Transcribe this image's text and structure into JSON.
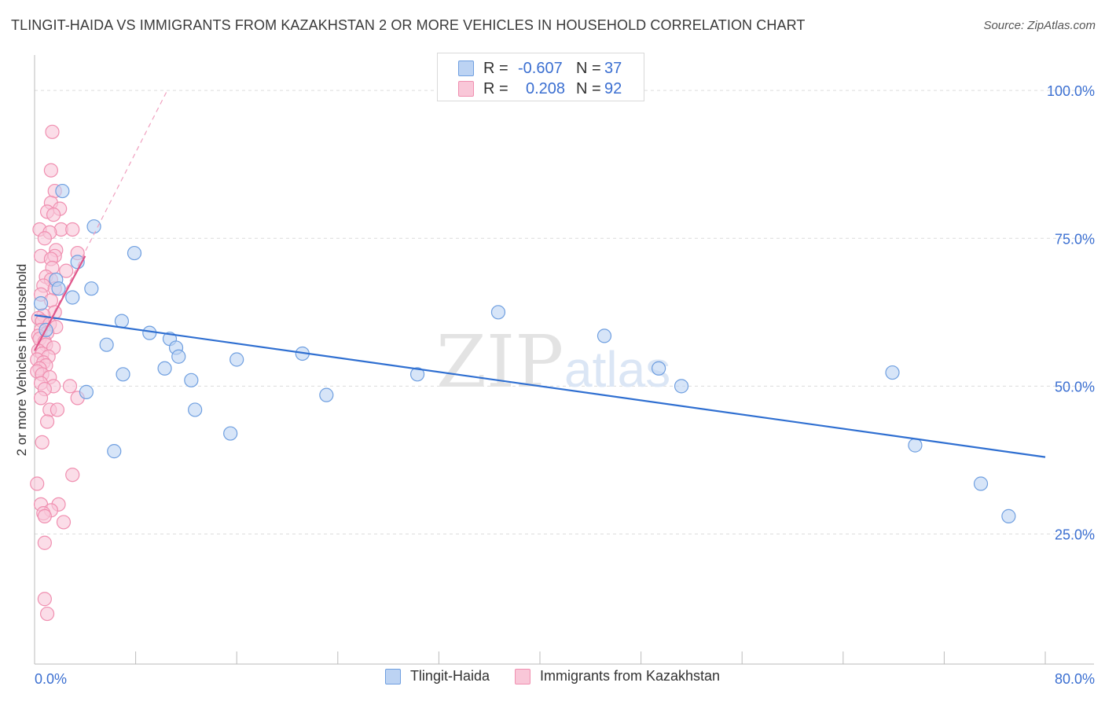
{
  "title": "TLINGIT-HAIDA VS IMMIGRANTS FROM KAZAKHSTAN 2 OR MORE VEHICLES IN HOUSEHOLD CORRELATION CHART",
  "source": "Source: ZipAtlas.com",
  "watermark": {
    "zip": "ZIP",
    "atlas": "atlas"
  },
  "legend": {
    "rows": [
      {
        "r_label": "R =",
        "r_value": "-0.607",
        "n_label": "N =",
        "n_value": "37"
      },
      {
        "r_label": "R =",
        "r_value": "0.208",
        "n_label": "N =",
        "n_value": "92"
      }
    ]
  },
  "chart_data": {
    "type": "scatter",
    "title": "TLINGIT-HAIDA VS IMMIGRANTS FROM KAZAKHSTAN 2 OR MORE VEHICLES IN HOUSEHOLD CORRELATION CHART",
    "xlabel": "",
    "ylabel": "2 or more Vehicles in Household",
    "xlim": [
      0,
      80
    ],
    "ylim": [
      3,
      106
    ],
    "x_tick_labels": [
      "0.0%",
      "80.0%"
    ],
    "y_ticks": [
      25,
      50,
      75,
      100
    ],
    "y_tick_labels": [
      "25.0%",
      "50.0%",
      "75.0%",
      "100.0%"
    ],
    "grid": true,
    "legend_position": "top-center",
    "series": [
      {
        "name": "Tlingit-Haida",
        "color": "#6f9fe0",
        "fill": "#bcd3f3",
        "line_color": "#2f6fd1",
        "trend": {
          "x": [
            0,
            80
          ],
          "y": [
            62,
            38
          ]
        },
        "points": [
          [
            2.2,
            83
          ],
          [
            4.7,
            77
          ],
          [
            3.4,
            71
          ],
          [
            7.9,
            72.5
          ],
          [
            1.7,
            68
          ],
          [
            1.9,
            66.5
          ],
          [
            4.5,
            66.5
          ],
          [
            3.0,
            65
          ],
          [
            0.5,
            64
          ],
          [
            0.9,
            59.5
          ],
          [
            6.9,
            61
          ],
          [
            9.1,
            59
          ],
          [
            10.7,
            58
          ],
          [
            5.7,
            57
          ],
          [
            11.2,
            56.5
          ],
          [
            11.4,
            55
          ],
          [
            16.0,
            54.5
          ],
          [
            21.2,
            55.5
          ],
          [
            10.3,
            53
          ],
          [
            7.0,
            52
          ],
          [
            12.4,
            51
          ],
          [
            4.1,
            49
          ],
          [
            23.1,
            48.5
          ],
          [
            12.7,
            46
          ],
          [
            15.5,
            42
          ],
          [
            6.3,
            39
          ],
          [
            36.7,
            62.5
          ],
          [
            45.1,
            58.5
          ],
          [
            30.3,
            52
          ],
          [
            49.4,
            53
          ],
          [
            51.2,
            50
          ],
          [
            67.9,
            52.3
          ],
          [
            69.7,
            40
          ],
          [
            74.9,
            33.5
          ],
          [
            77.1,
            28
          ]
        ]
      },
      {
        "name": "Immigrants from Kazakhstan",
        "color": "#f08fb0",
        "fill": "#f9c7d8",
        "line_color": "#e0558a",
        "trend": {
          "x": [
            0,
            4
          ],
          "y": [
            56,
            72
          ]
        },
        "trend_extended": {
          "x": [
            0,
            10.5
          ],
          "y": [
            56,
            100
          ]
        },
        "points": [
          [
            1.4,
            93
          ],
          [
            1.3,
            86.5
          ],
          [
            1.6,
            83
          ],
          [
            1.3,
            81
          ],
          [
            2.0,
            80
          ],
          [
            1.0,
            79.5
          ],
          [
            1.5,
            79
          ],
          [
            2.1,
            76.5
          ],
          [
            3.0,
            76.5
          ],
          [
            0.4,
            76.5
          ],
          [
            1.2,
            76
          ],
          [
            0.8,
            75
          ],
          [
            1.7,
            73
          ],
          [
            3.4,
            72.5
          ],
          [
            0.5,
            72
          ],
          [
            1.6,
            72
          ],
          [
            1.3,
            71.5
          ],
          [
            1.4,
            70
          ],
          [
            2.5,
            69.5
          ],
          [
            0.9,
            68.5
          ],
          [
            1.3,
            68
          ],
          [
            0.7,
            67
          ],
          [
            1.6,
            66.5
          ],
          [
            0.5,
            65.5
          ],
          [
            1.3,
            64.5
          ],
          [
            1.6,
            62.5
          ],
          [
            0.7,
            62
          ],
          [
            0.3,
            61.5
          ],
          [
            0.6,
            61
          ],
          [
            1.2,
            60.5
          ],
          [
            1.7,
            60
          ],
          [
            0.5,
            59.5
          ],
          [
            1.0,
            59
          ],
          [
            0.3,
            58.5
          ],
          [
            0.4,
            58
          ],
          [
            0.8,
            57.5
          ],
          [
            0.9,
            57
          ],
          [
            1.5,
            56.5
          ],
          [
            0.3,
            56
          ],
          [
            0.6,
            55.5
          ],
          [
            1.1,
            55
          ],
          [
            0.2,
            54.5
          ],
          [
            0.7,
            54
          ],
          [
            0.9,
            53.5
          ],
          [
            0.4,
            53
          ],
          [
            0.2,
            52.5
          ],
          [
            0.6,
            52
          ],
          [
            1.2,
            51.5
          ],
          [
            0.5,
            50.5
          ],
          [
            1.5,
            50
          ],
          [
            2.8,
            50
          ],
          [
            0.8,
            49.5
          ],
          [
            0.5,
            48
          ],
          [
            3.4,
            48
          ],
          [
            1.2,
            46
          ],
          [
            1.8,
            46
          ],
          [
            1.0,
            44
          ],
          [
            0.6,
            40.5
          ],
          [
            3.0,
            35
          ],
          [
            0.2,
            33.5
          ],
          [
            0.5,
            30
          ],
          [
            1.9,
            30
          ],
          [
            1.3,
            29
          ],
          [
            0.7,
            28.5
          ],
          [
            0.8,
            28
          ],
          [
            2.3,
            27
          ],
          [
            0.8,
            23.5
          ],
          [
            0.8,
            14
          ],
          [
            1.0,
            11.5
          ]
        ]
      }
    ]
  }
}
